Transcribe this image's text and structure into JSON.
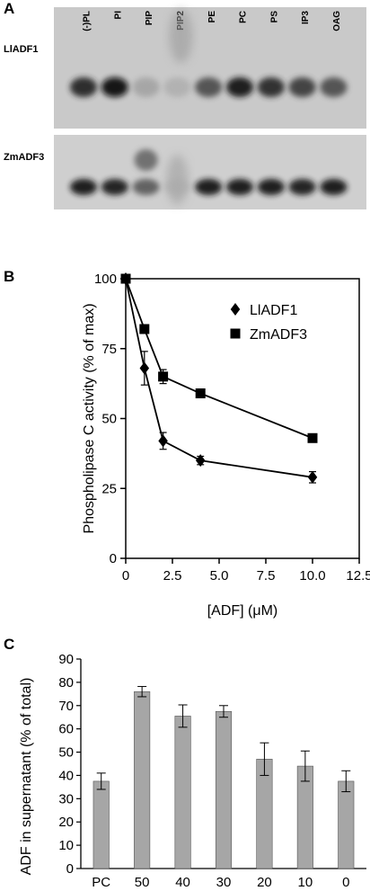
{
  "panels": {
    "a": "A",
    "b": "B",
    "c": "C"
  },
  "gel": {
    "lanes": [
      "(-)PL",
      "PI",
      "PIP",
      "PIP2",
      "PE",
      "PC",
      "PS",
      "IP3",
      "OAG"
    ],
    "rows": [
      {
        "label": "LlADF1",
        "intensities": [
          0.82,
          0.98,
          0.18,
          0.12,
          0.62,
          0.9,
          0.8,
          0.72,
          0.62
        ]
      },
      {
        "label": "ZmADF3",
        "intensities": [
          0.92,
          0.88,
          0.55,
          0.06,
          0.92,
          0.92,
          0.9,
          0.88,
          0.9
        ]
      }
    ]
  },
  "chart_data": [
    {
      "type": "line",
      "xlabel": "[ADF]  (μM)",
      "ylabel": "Phospholipase C activity (% of max)",
      "xlim": [
        0,
        12.5
      ],
      "ylim": [
        0,
        100
      ],
      "xticks": [
        "0",
        "2.5",
        "5.0",
        "7.5",
        "10.0",
        "12.5"
      ],
      "yticks": [
        "0",
        "25",
        "50",
        "75",
        "100"
      ],
      "legend_position": "top-right",
      "series": [
        {
          "name": "LlADF1",
          "marker": "diamond",
          "x": [
            0,
            1,
            2,
            4,
            10
          ],
          "y": [
            100,
            68,
            42,
            35,
            29
          ],
          "err": [
            0,
            6,
            3,
            1.5,
            2
          ]
        },
        {
          "name": "ZmADF3",
          "marker": "square",
          "x": [
            0,
            1,
            2,
            4,
            10
          ],
          "y": [
            100,
            82,
            65,
            59,
            43
          ],
          "err": [
            0,
            1,
            2.5,
            1,
            1
          ]
        }
      ]
    },
    {
      "type": "bar",
      "ylabel": "ADF in supernatant (% of total)",
      "categories": [
        "PC",
        "50",
        "40",
        "30",
        "20",
        "10",
        "0"
      ],
      "values": [
        37.5,
        76,
        65.5,
        67.5,
        47,
        44,
        37.5
      ],
      "errors": [
        3.5,
        2.2,
        4.8,
        2.5,
        7,
        6.5,
        4.5
      ],
      "ylim": [
        0,
        90
      ],
      "yticks": [
        "0",
        "10",
        "20",
        "30",
        "40",
        "50",
        "60",
        "70",
        "80",
        "90"
      ],
      "bar_color": "#a6a6a6"
    }
  ]
}
